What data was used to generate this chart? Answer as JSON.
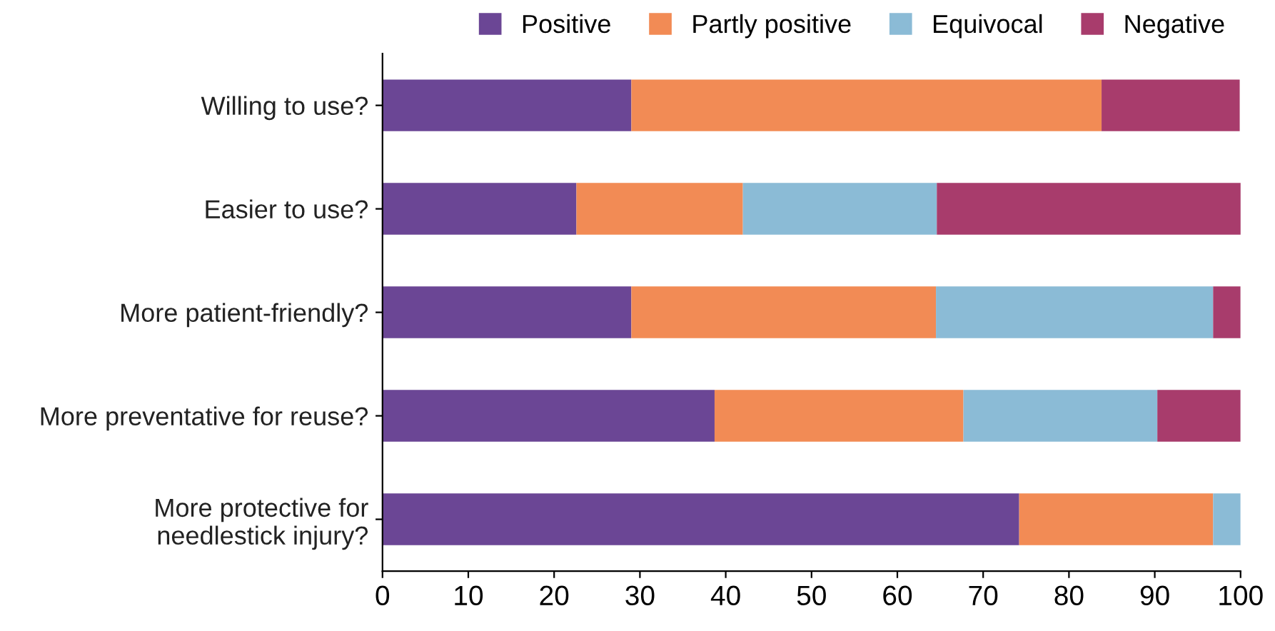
{
  "chart_data": {
    "type": "bar",
    "orientation": "horizontal",
    "stacked": true,
    "categories": [
      "Willing to use?",
      "Easier to use?",
      "More patient-friendly?",
      "More preventative for reuse?",
      "More protective for\nneedlestick injury?"
    ],
    "series": [
      {
        "name": "Positive",
        "color": "#6b4695",
        "values": [
          29.0,
          22.6,
          29.0,
          38.7,
          74.2
        ]
      },
      {
        "name": "Partly positive",
        "color": "#f28b55",
        "values": [
          54.8,
          19.4,
          35.5,
          29.0,
          22.6
        ]
      },
      {
        "name": "Equivocal",
        "color": "#8bbbd6",
        "values": [
          0,
          22.6,
          32.3,
          22.6,
          3.2
        ]
      },
      {
        "name": "Negative",
        "color": "#a83c6c",
        "values": [
          16.1,
          35.5,
          3.2,
          9.7,
          0
        ]
      }
    ],
    "xlim": [
      0,
      100
    ],
    "xticks": [
      0,
      10,
      20,
      30,
      40,
      50,
      60,
      70,
      80,
      90,
      100
    ],
    "grid": false,
    "legend": "top right"
  }
}
